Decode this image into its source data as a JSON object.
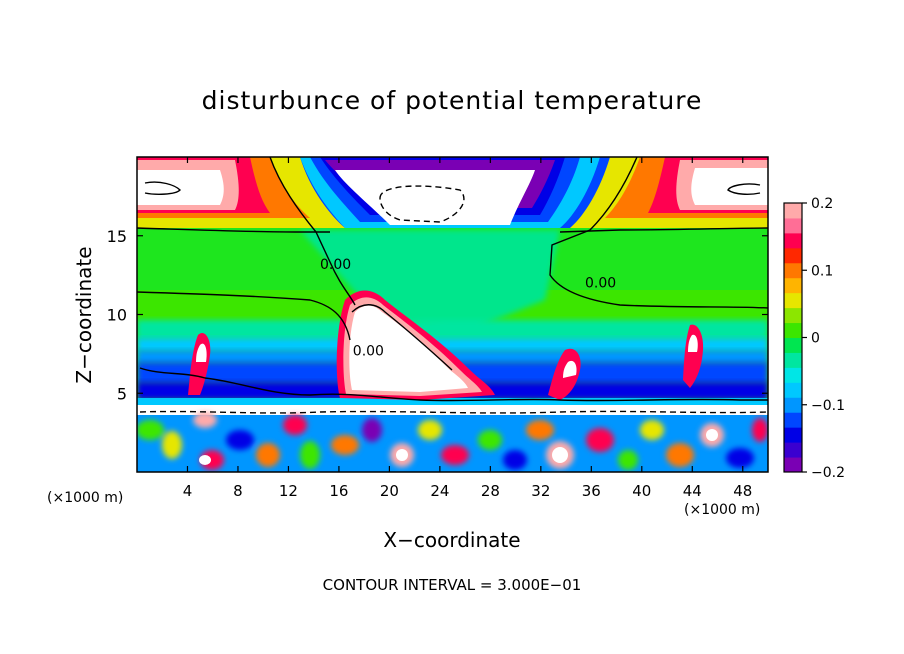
{
  "chart_data": {
    "type": "heatmap",
    "title": "disturbunce of potential temperature",
    "xlabel": "X−coordinate",
    "ylabel": "Z−coordinate",
    "x_unit_left": "(×1000 m)",
    "x_unit_right": "(×1000 m)",
    "footer": "CONTOUR INTERVAL = 3.000E−01",
    "xlim": [
      0,
      50
    ],
    "ylim": [
      0,
      20
    ],
    "xticks": [
      4,
      8,
      12,
      16,
      20,
      24,
      28,
      32,
      36,
      40,
      44,
      48
    ],
    "xtick_labels": [
      "4",
      "8",
      "12",
      "16",
      "20",
      "24",
      "28",
      "32",
      "36",
      "40",
      "44",
      "48"
    ],
    "yticks": [
      5,
      10,
      15
    ],
    "ytick_labels": [
      "5",
      "10",
      "15"
    ],
    "colorbar": {
      "range": [
        -0.2,
        0.2
      ],
      "ticks": [
        0.2,
        0.1,
        0,
        -0.1,
        -0.2
      ],
      "tick_labels": [
        "0.2",
        "0.1",
        "0",
        "−0.1",
        "−0.2"
      ],
      "colors": [
        "#7a00b4",
        "#3a00d0",
        "#0000e6",
        "#0046ff",
        "#0096ff",
        "#00c8ff",
        "#00e6e6",
        "#00e6a0",
        "#00e650",
        "#3ce600",
        "#8ce600",
        "#e6e600",
        "#ffb400",
        "#ff7800",
        "#ff2800",
        "#ff0050",
        "#ff6e96",
        "#ffaaaa"
      ]
    },
    "contour_labels": [
      {
        "text": "0.00",
        "x": 14.5,
        "z": 12.9
      },
      {
        "text": "0.00",
        "x": 35.5,
        "z": 11.7
      },
      {
        "text": "0.00",
        "x": 17.1,
        "z": 7.4
      }
    ]
  }
}
